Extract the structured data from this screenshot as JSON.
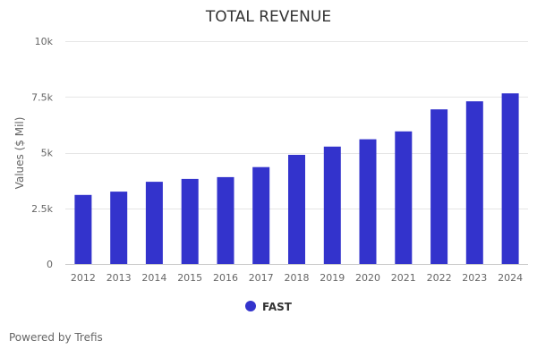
{
  "chart_data": {
    "type": "bar",
    "title": "TOTAL REVENUE",
    "xlabel": "",
    "ylabel": "Values ($ Mil)",
    "ylim": [
      0,
      10000
    ],
    "yticks": [
      {
        "value": 0,
        "label": "0"
      },
      {
        "value": 2500,
        "label": "2.5k"
      },
      {
        "value": 5000,
        "label": "5k"
      },
      {
        "value": 7500,
        "label": "7.5k"
      },
      {
        "value": 10000,
        "label": "10k"
      }
    ],
    "categories": [
      "2012",
      "2013",
      "2014",
      "2015",
      "2016",
      "2017",
      "2018",
      "2019",
      "2020",
      "2021",
      "2022",
      "2023",
      "2024"
    ],
    "series": [
      {
        "name": "FAST",
        "color": "#3333cc",
        "values": [
          3100,
          3250,
          3690,
          3820,
          3900,
          4350,
          4900,
          5270,
          5600,
          5950,
          6940,
          7300,
          7660
        ]
      }
    ],
    "grid": true,
    "legend": "bottom-center"
  },
  "credits": "Powered by Trefis"
}
